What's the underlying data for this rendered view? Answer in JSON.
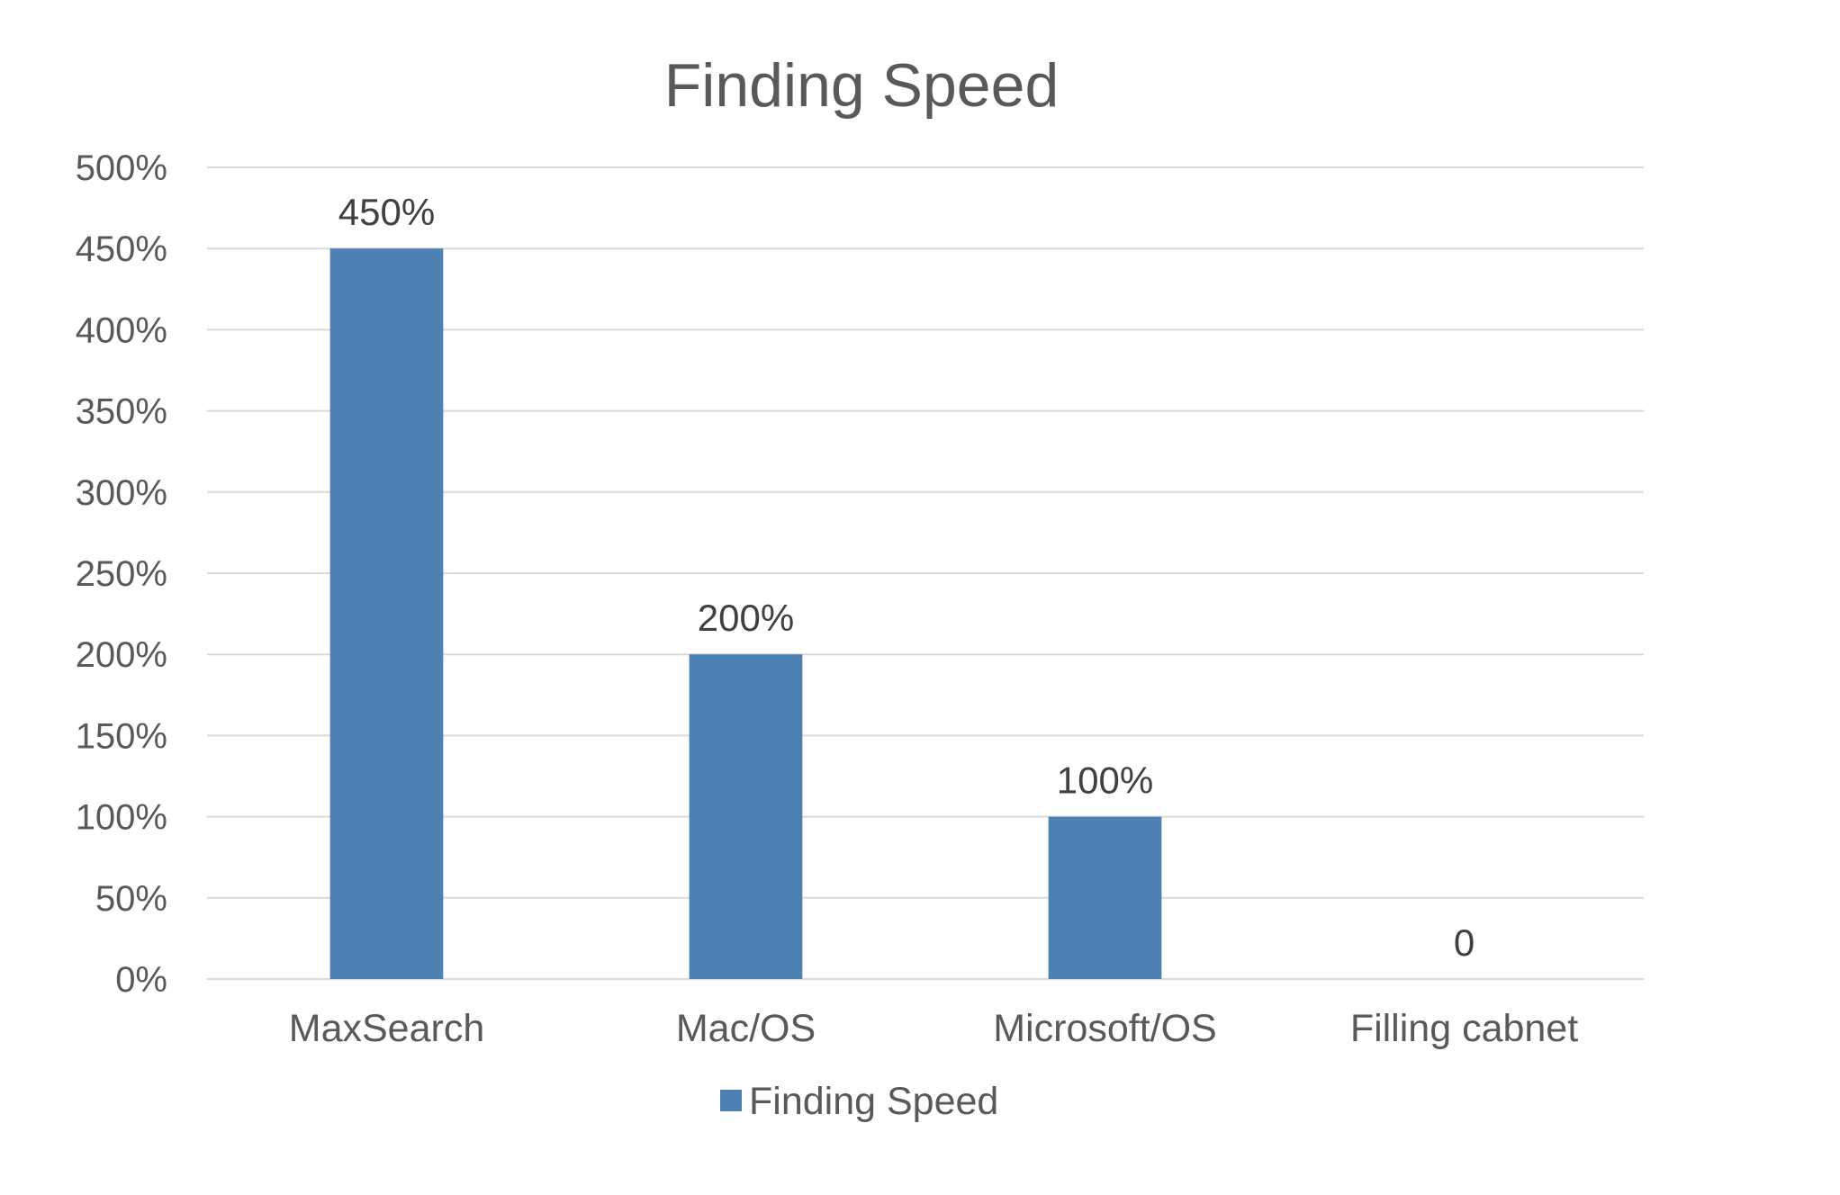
{
  "chart_data": {
    "type": "bar",
    "title": "Finding Speed",
    "categories": [
      "MaxSearch",
      "Mac/OS",
      "Microsoft/OS",
      "Filling cabnet"
    ],
    "series": [
      {
        "name": "Finding Speed",
        "values": [
          450,
          200,
          100,
          0
        ],
        "data_labels": [
          "450%",
          "200%",
          "100%",
          "0"
        ],
        "color": "#4e80b4"
      }
    ],
    "ylim": [
      0,
      500
    ],
    "y_ticks": [
      0,
      50,
      100,
      150,
      200,
      250,
      300,
      350,
      400,
      450,
      500
    ],
    "y_tick_labels": [
      "0%",
      "50%",
      "100%",
      "150%",
      "200%",
      "250%",
      "300%",
      "350%",
      "400%",
      "450%",
      "500%"
    ],
    "grid": true,
    "legend": {
      "position": "bottom",
      "entries": [
        "Finding Speed"
      ]
    }
  }
}
